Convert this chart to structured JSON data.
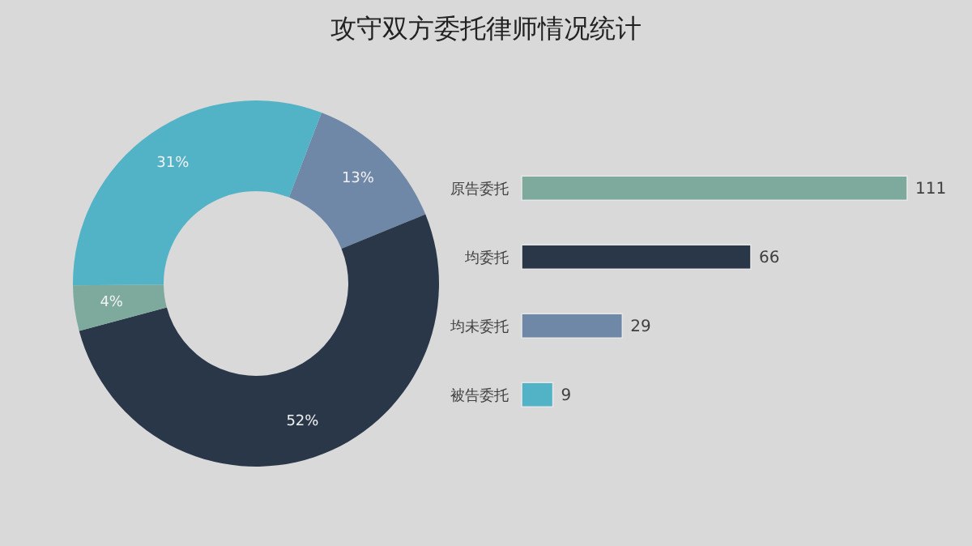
{
  "chart_data": [
    {
      "type": "donut",
      "title": "攻守双方委托律师情况统计",
      "categories": [
        null,
        null,
        null,
        null
      ],
      "values": [
        13,
        52,
        4,
        31
      ],
      "colors": [
        "#7088a8",
        "#2a3749",
        "#7eaa9e",
        "#52b3c7"
      ],
      "value_labels": [
        "13%",
        "52%",
        "4%",
        "31%"
      ]
    },
    {
      "type": "bar",
      "orientation": "horizontal",
      "categories": [
        "原告委托",
        "均委托",
        "均未委托",
        "被告委托"
      ],
      "values": [
        111,
        66,
        29,
        9
      ],
      "colors": [
        "#7eaa9e",
        "#2a3749",
        "#7088a8",
        "#52b3c7"
      ],
      "data_labels": true
    }
  ]
}
